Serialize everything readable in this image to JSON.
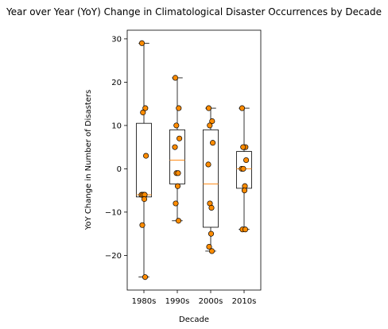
{
  "chart_data": {
    "type": "box",
    "title": "Year over Year (YoY) Change in Climatological Disaster Occurrences by Decade",
    "xlabel": "Decade",
    "ylabel": "YoY Change in Number of Disasters",
    "categories": [
      "1980s",
      "1990s",
      "2000s",
      "2010s"
    ],
    "ylim": [
      -28,
      32
    ],
    "yticks": [
      -20,
      -10,
      0,
      10,
      20,
      30
    ],
    "ytick_labels": [
      "−20",
      "−10",
      "0",
      "10",
      "20",
      "30"
    ],
    "boxes": [
      {
        "category": "1980s",
        "whisker_low": -25,
        "q1": -6.5,
        "median": -6,
        "q3": 10.5,
        "whisker_high": 29
      },
      {
        "category": "1990s",
        "whisker_low": -12,
        "q1": -3.5,
        "median": 2,
        "q3": 9,
        "whisker_high": 21
      },
      {
        "category": "2000s",
        "whisker_low": -19,
        "q1": -13.5,
        "median": -3.5,
        "q3": 9,
        "whisker_high": 14
      },
      {
        "category": "2010s",
        "whisker_low": -14,
        "q1": -4.5,
        "median": 0,
        "q3": 4,
        "whisker_high": 14
      }
    ],
    "points": [
      {
        "category": "1980s",
        "values": [
          29,
          14,
          13,
          3,
          -6,
          -6,
          -6,
          -7,
          -13,
          -25
        ]
      },
      {
        "category": "1990s",
        "values": [
          21,
          14,
          10,
          7,
          5,
          -1,
          -1,
          -4,
          -8,
          -12
        ]
      },
      {
        "category": "2000s",
        "values": [
          14,
          11,
          10,
          6,
          1,
          -8,
          -9,
          -15,
          -18,
          -19
        ]
      },
      {
        "category": "2010s",
        "values": [
          14,
          5,
          5,
          2,
          0,
          0,
          -4,
          -5,
          -14,
          -14
        ]
      }
    ],
    "colors": {
      "box_edge": "#000000",
      "median": "#ff8c1a",
      "point_fill": "#ff8c00",
      "point_edge": "#000000"
    },
    "grid": false
  }
}
